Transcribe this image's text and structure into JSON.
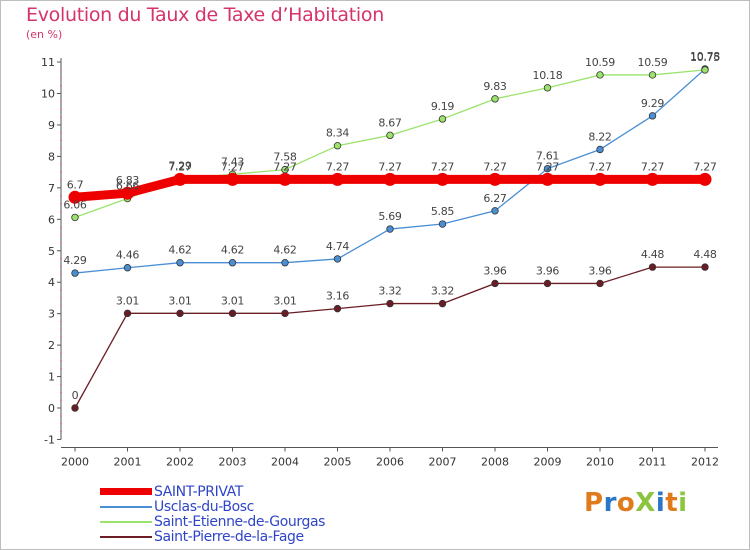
{
  "title": "Evolution du Taux de Taxe d’Habitation",
  "subtitle": "(en %)",
  "logo": {
    "text": "ProXiti",
    "letters": [
      {
        "ch": "P",
        "color": "#e07b1b"
      },
      {
        "ch": "r",
        "color": "#2a77c9"
      },
      {
        "ch": "o",
        "color": "#e07b1b"
      },
      {
        "ch": "X",
        "color": "#8bc53f"
      },
      {
        "ch": "i",
        "color": "#2a77c9"
      },
      {
        "ch": "t",
        "color": "#e07b1b"
      },
      {
        "ch": "i",
        "color": "#8bc53f"
      }
    ]
  },
  "chart_data": {
    "type": "line",
    "title": "Evolution du Taux de Taxe d’Habitation",
    "subtitle": "(en %)",
    "x": [
      "2000",
      "2001",
      "2002",
      "2003",
      "2004",
      "2005",
      "2006",
      "2007",
      "2008",
      "2009",
      "2010",
      "2011",
      "2012"
    ],
    "ylim": [
      -1,
      11
    ],
    "yticks": [
      "-1",
      "0",
      "1",
      "2",
      "3",
      "4",
      "5",
      "6",
      "7",
      "8",
      "9",
      "10",
      "11"
    ],
    "grid": false,
    "legend_position": "bottom-left",
    "series": [
      {
        "name": "SAINT-PRIVAT",
        "color": "#ee0000",
        "values": [
          6.7,
          6.83,
          7.27,
          7.27,
          7.27,
          7.27,
          7.27,
          7.27,
          7.27,
          7.27,
          7.27,
          7.27,
          7.27
        ],
        "labels": [
          "6.7",
          "6.83",
          "7.27",
          "7.27",
          "7.27",
          "7.27",
          "7.27",
          "7.27",
          "7.27",
          "7.27",
          "7.27",
          "7.27",
          "7.27"
        ]
      },
      {
        "name": "Usclas-du-Bosc",
        "color": "#4a8fd4",
        "values": [
          4.29,
          4.46,
          4.62,
          4.62,
          4.62,
          4.74,
          5.69,
          5.85,
          6.27,
          7.61,
          8.22,
          9.29,
          10.78
        ],
        "labels": [
          "4.29",
          "4.46",
          "4.62",
          "4.62",
          "4.62",
          "4.74",
          "5.69",
          "5.85",
          "6.27",
          "7.61",
          "8.22",
          "9.29",
          "10.78"
        ]
      },
      {
        "name": "Saint-Etienne-de-Gourgas",
        "color": "#9be36a",
        "values": [
          6.06,
          6.66,
          7.29,
          7.43,
          7.58,
          8.34,
          8.67,
          9.19,
          9.83,
          10.18,
          10.59,
          10.59,
          10.75
        ],
        "labels": [
          "6.06",
          "6.66",
          "7.29",
          "7.43",
          "7.58",
          "8.34",
          "8.67",
          "9.19",
          "9.83",
          "10.18",
          "10.59",
          "10.59",
          "10.75"
        ]
      },
      {
        "name": "Saint-Pierre-de-la-Fage",
        "color": "#6b1c24",
        "values": [
          0,
          3.01,
          3.01,
          3.01,
          3.01,
          3.16,
          3.32,
          3.32,
          3.96,
          3.96,
          3.96,
          4.48,
          4.48
        ],
        "labels": [
          "0",
          "3.01",
          "3.01",
          "3.01",
          "3.01",
          "3.16",
          "3.32",
          "3.32",
          "3.96",
          "3.96",
          "3.96",
          "4.48",
          "4.48"
        ]
      }
    ]
  }
}
